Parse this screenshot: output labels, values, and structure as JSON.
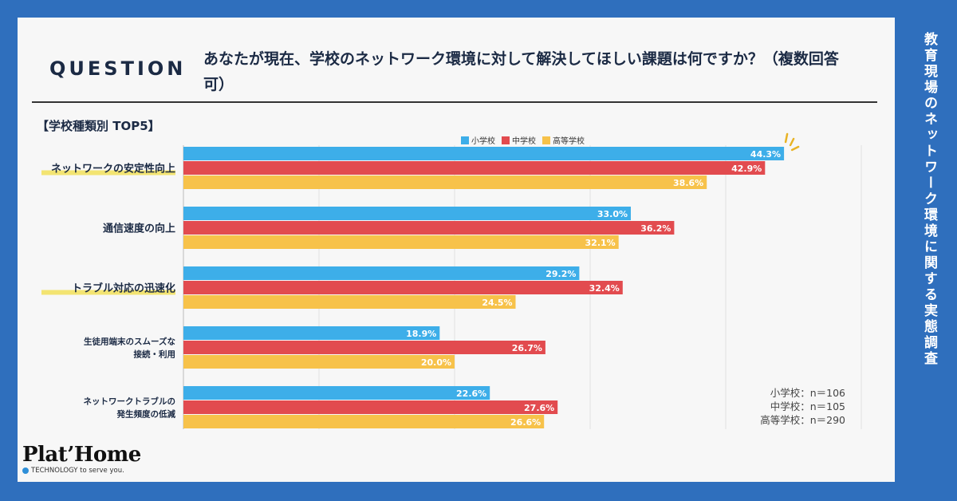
{
  "side_title": "教育現場のネットワーク環境に関する実態調査",
  "question_label": "QUESTION",
  "question_text": "あなたが現在、学校のネットワーク環境に対して解決してほしい課題は何ですか？（複数回答可）",
  "subtitle": "【学校種類別 TOP5】",
  "colors": {
    "elementary": "#3daee9",
    "junior": "#e24b4f",
    "high": "#f7c24a",
    "highlight": "#f2e15a",
    "accent": "#e8b325"
  },
  "sample_sizes": [
    "小学校：n＝106",
    "中学校：n＝105",
    "高等学校：n＝290"
  ],
  "logo": {
    "name": "Plat’Home",
    "tagline": "TECHNOLOGY to serve you."
  },
  "chart_data": {
    "type": "bar",
    "orientation": "horizontal",
    "title": "【学校種類別 TOP5】",
    "xlim": [
      0,
      60
    ],
    "unit": "%",
    "categories": [
      [
        "ネットワークの安定性向上"
      ],
      [
        "通信速度の向上"
      ],
      [
        "トラブル対応の迅速化"
      ],
      [
        "生徒用端末のスムーズな",
        "接続・利用"
      ],
      [
        "ネットワークトラブルの",
        "発生頻度の低減"
      ]
    ],
    "highlighted": [
      true,
      false,
      true,
      false,
      false
    ],
    "series": [
      {
        "name": "小学校",
        "values": [
          44.3,
          33.0,
          29.2,
          18.9,
          22.6
        ]
      },
      {
        "name": "中学校",
        "values": [
          42.9,
          36.2,
          32.4,
          26.7,
          27.6
        ]
      },
      {
        "name": "高等学校",
        "values": [
          38.6,
          32.1,
          24.5,
          20.0,
          26.6
        ]
      }
    ]
  }
}
